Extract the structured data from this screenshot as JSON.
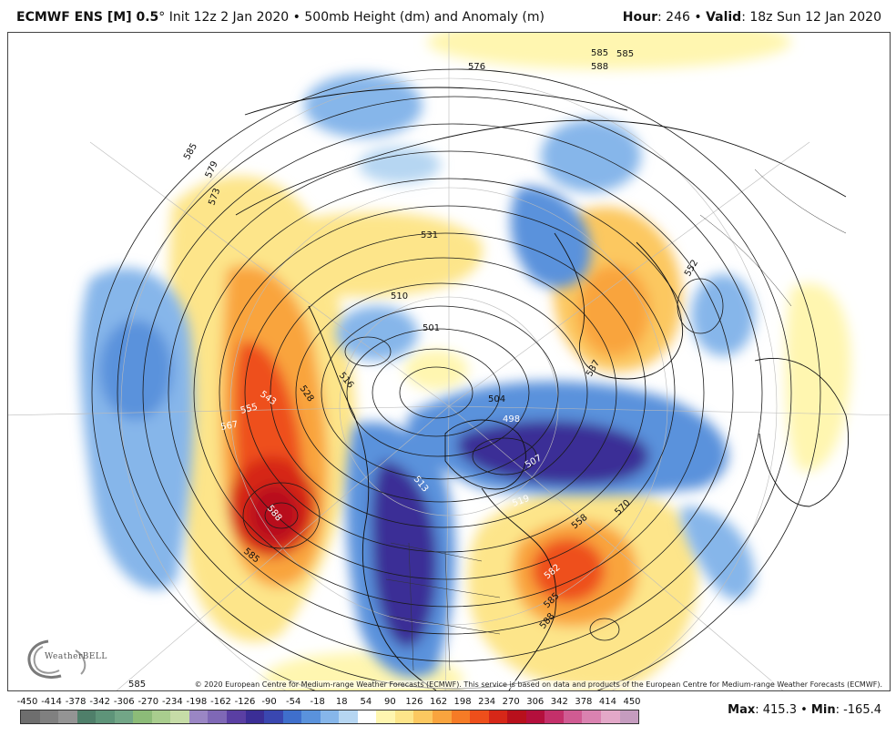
{
  "header": {
    "model": "ECMWF ENS [M] 0.5",
    "degree": "°",
    "init": " Init 12z 2 Jan 2020",
    "sep": " • ",
    "product": "500mb Height (dm) and Anomaly (m)",
    "hour_label": "Hour",
    "hour_value": ": 246",
    "valid_label": "Valid",
    "valid_value": ": 18z Sun 12 Jan 2020"
  },
  "map": {
    "contour_labels": [
      "576",
      "585",
      "585",
      "579",
      "573",
      "588",
      "585",
      "531",
      "510",
      "501",
      "516",
      "528",
      "543",
      "555",
      "567",
      "588",
      "585",
      "504",
      "498",
      "513",
      "507",
      "519",
      "558",
      "570",
      "582",
      "585",
      "588",
      "585",
      "552",
      "537"
    ],
    "copyright": "© 2020 European Centre for Medium-range Weather Forecasts (ECMWF). This service is based on data and products of the European Centre for Medium-range Weather Forecasts (ECMWF).",
    "logo_text": "WeatherBELL"
  },
  "colorbar": {
    "labels": [
      "-450",
      "-414",
      "-378",
      "-342",
      "-306",
      "-270",
      "-234",
      "-198",
      "-162",
      "-126",
      "-90",
      "-54",
      "-18",
      "18",
      "54",
      "90",
      "126",
      "162",
      "198",
      "234",
      "270",
      "306",
      "342",
      "378",
      "414",
      "450"
    ],
    "colors": [
      "#6e6e6e",
      "#808080",
      "#949494",
      "#4f7f6a",
      "#5e9479",
      "#72a687",
      "#8cbb78",
      "#a9cd8e",
      "#c6dca7",
      "#9a86c4",
      "#7f68b6",
      "#5a3fa3",
      "#3b2e96",
      "#3a47b0",
      "#3f6fcc",
      "#5a92dc",
      "#86b6ea",
      "#b6d6f2",
      "#ffffff",
      "#fff6b0",
      "#fde58a",
      "#fcc860",
      "#f9a43e",
      "#f67b26",
      "#ee4f1b",
      "#d62718",
      "#b8101c",
      "#b40f3c",
      "#c4306a",
      "#d05b92",
      "#da82b0",
      "#e3a8c8",
      "#c59cbf"
    ],
    "max_label": "Max",
    "max_value": ": 415.3",
    "min_sep": " • ",
    "min_label": "Min",
    "min_value": ": -165.4"
  }
}
